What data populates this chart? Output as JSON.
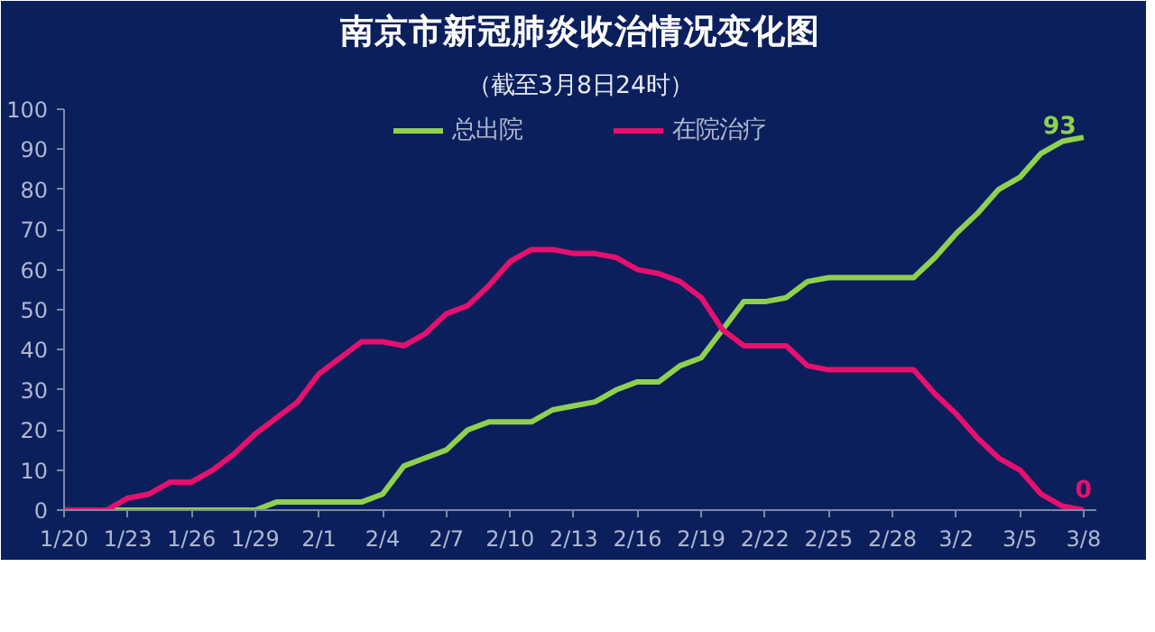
{
  "chart_data": {
    "type": "line",
    "title": "南京市新冠肺炎收治情况变化图",
    "subtitle": "（截至3月8日24时）",
    "categories": [
      "1/20",
      null,
      null,
      "1/23",
      null,
      null,
      "1/26",
      null,
      null,
      "1/29",
      null,
      null,
      "2/1",
      null,
      null,
      "2/4",
      null,
      null,
      "2/7",
      null,
      null,
      "2/10",
      null,
      null,
      "2/13",
      null,
      null,
      "2/16",
      null,
      null,
      "2/19",
      null,
      null,
      "2/22",
      null,
      null,
      "2/25",
      null,
      null,
      "2/28",
      null,
      null,
      "3/2",
      null,
      null,
      "3/5",
      null,
      null,
      "3/8"
    ],
    "series": [
      {
        "name": "总出院",
        "color": "#8fd14f",
        "values": [
          0,
          0,
          0,
          0,
          0,
          0,
          0,
          0,
          0,
          0,
          2,
          2,
          2,
          2,
          2,
          4,
          11,
          13,
          15,
          20,
          22,
          22,
          22,
          25,
          26,
          27,
          30,
          32,
          32,
          36,
          38,
          45,
          52,
          52,
          53,
          57,
          58,
          58,
          58,
          58,
          58,
          63,
          69,
          74,
          80,
          83,
          89,
          92,
          93
        ],
        "value_labels": [
          null,
          null,
          null,
          null,
          null,
          null,
          null,
          null,
          null,
          null,
          null,
          null,
          null,
          null,
          null,
          null,
          null,
          null,
          null,
          null,
          null,
          null,
          null,
          null,
          null,
          null,
          null,
          null,
          null,
          null,
          null,
          null,
          null,
          null,
          null,
          null,
          null,
          null,
          null,
          null,
          null,
          null,
          null,
          null,
          null,
          null,
          null,
          null,
          "93"
        ]
      },
      {
        "name": "在院治疗",
        "color": "#e8106e",
        "values": [
          0,
          0,
          0,
          3,
          4,
          7,
          7,
          10,
          14,
          19,
          23,
          27,
          34,
          38,
          42,
          42,
          41,
          44,
          49,
          51,
          56,
          62,
          65,
          65,
          64,
          64,
          63,
          60,
          59,
          57,
          53,
          45,
          41,
          41,
          41,
          36,
          35,
          35,
          35,
          35,
          35,
          29,
          24,
          18,
          13,
          10,
          4,
          1,
          0
        ],
        "value_labels": [
          null,
          null,
          null,
          null,
          null,
          null,
          null,
          null,
          null,
          null,
          null,
          null,
          null,
          null,
          null,
          null,
          null,
          null,
          null,
          null,
          null,
          null,
          null,
          null,
          null,
          null,
          null,
          null,
          null,
          null,
          null,
          null,
          null,
          null,
          null,
          null,
          null,
          null,
          null,
          null,
          null,
          null,
          null,
          null,
          null,
          null,
          null,
          null,
          "0"
        ]
      }
    ],
    "ylim": [
      0,
      100
    ],
    "yticks": [
      0,
      10,
      20,
      30,
      40,
      50,
      60,
      70,
      80,
      90,
      100
    ],
    "legend": "top",
    "grid": false,
    "marker": "none",
    "line_style": "solid"
  }
}
